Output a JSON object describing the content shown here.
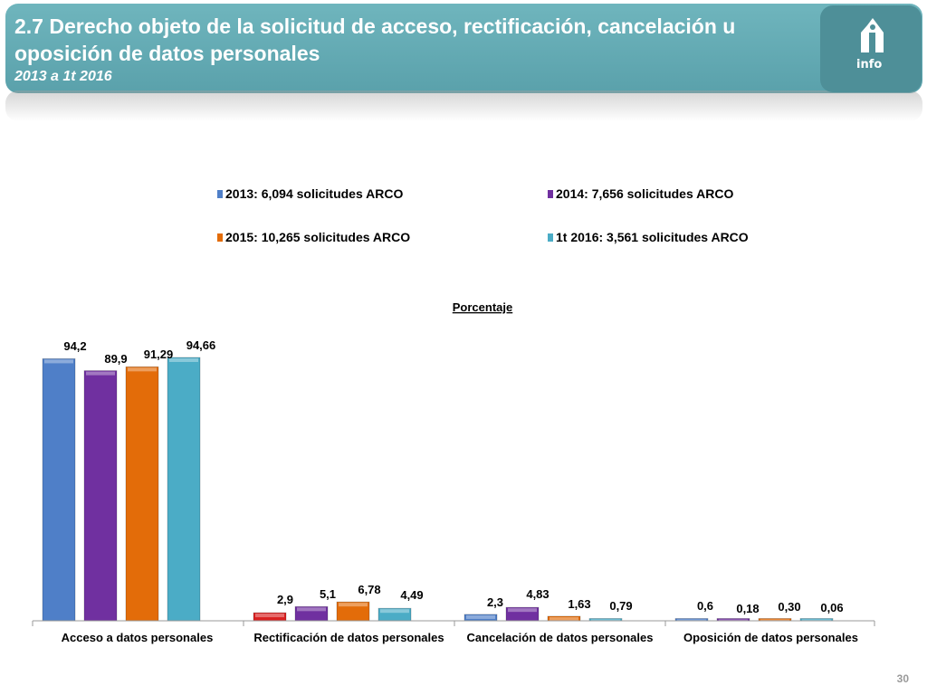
{
  "header": {
    "title": "2.7 Derecho objeto de la solicitud de acceso, rectificación, cancelación u oposición de datos personales",
    "subtitle": "2013 a 1t 2016",
    "logo_text": "info"
  },
  "page_number": "30",
  "chart_data": {
    "type": "bar",
    "title": "Porcentaje",
    "categories": [
      "Acceso a datos personales",
      "Rectificación de datos personales",
      "Cancelación de datos personales",
      "Oposición de datos personales"
    ],
    "series": [
      {
        "name": "2013: 6,094 solicitudes ARCO",
        "color": "#4f7fc8",
        "values": [
          94.2,
          2.9,
          2.3,
          0.6
        ],
        "labels": [
          "94,2",
          "2,9",
          "2,3",
          "0,6"
        ]
      },
      {
        "name": "2014: 7,656 solicitudes ARCO",
        "color": "#7030a0",
        "values": [
          89.9,
          5.1,
          4.83,
          0.18
        ],
        "labels": [
          "89,9",
          "5,1",
          "4,83",
          "0,18"
        ]
      },
      {
        "name": "2015: 10,265 solicitudes ARCO",
        "color": "#e36c09",
        "values": [
          91.29,
          6.78,
          1.63,
          0.3
        ],
        "labels": [
          "91,29",
          "6,78",
          "1,63",
          "0,30"
        ]
      },
      {
        "name": "1t 2016: 3,561 solicitudes ARCO",
        "color": "#4bacc6",
        "values": [
          94.66,
          4.49,
          0.79,
          0.06
        ],
        "labels": [
          "94,66",
          "4,49",
          "0,79",
          "0,06"
        ]
      }
    ],
    "highlight": {
      "category_index": 1,
      "series_index": 0,
      "color": "#d92020"
    },
    "ylim": [
      0,
      100
    ],
    "legend_position": "top"
  }
}
